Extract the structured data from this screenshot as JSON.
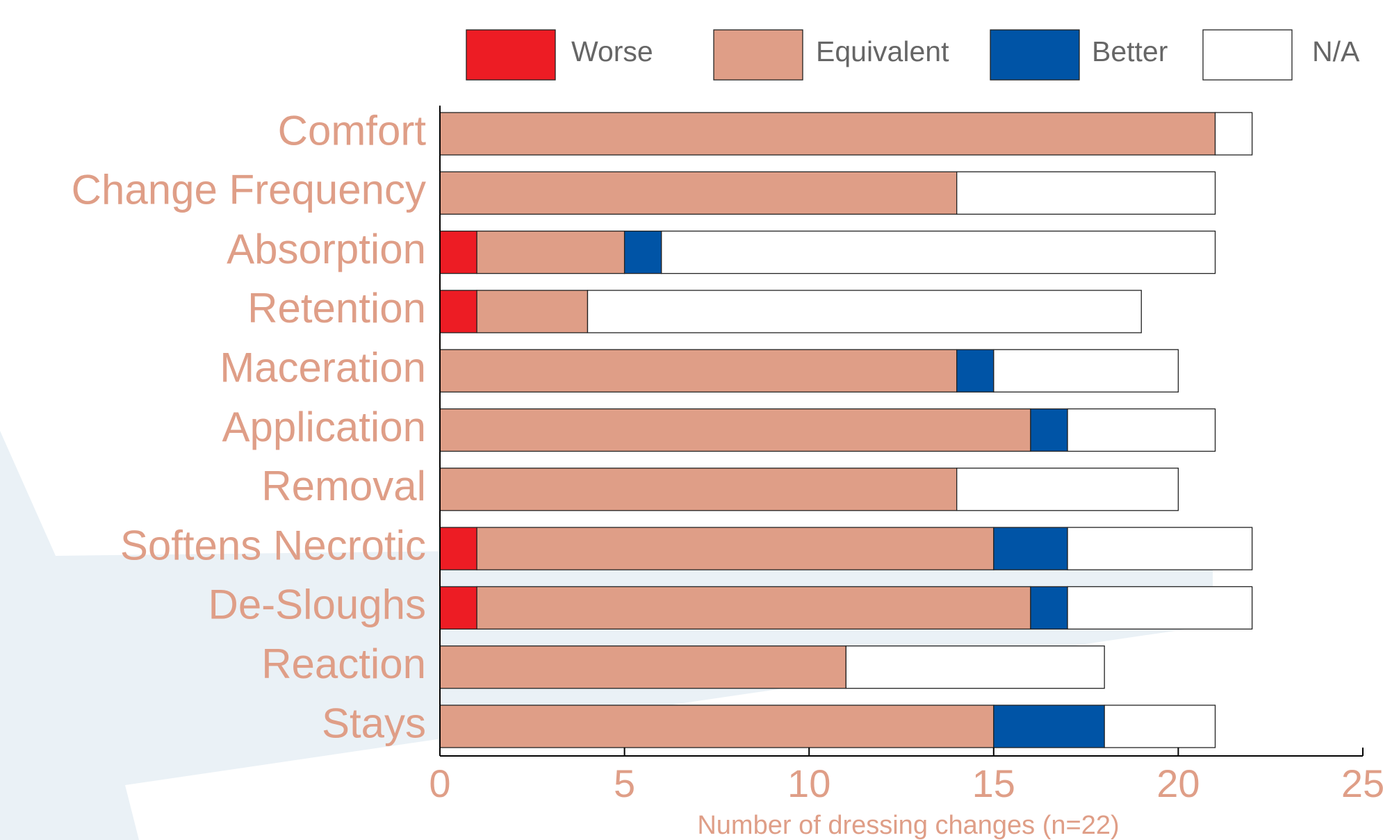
{
  "chart_data": {
    "type": "stacked-barh",
    "categories": [
      "Comfort",
      "Change Frequency",
      "Absorption",
      "Retention",
      "Maceration",
      "Application",
      "Removal",
      "Softens Necrotic",
      "De-Sloughs",
      "Reaction",
      "Stays"
    ],
    "series": [
      {
        "name": "Worse",
        "color": "#ed1c24",
        "values": [
          0,
          0,
          1,
          1,
          0,
          0,
          0,
          1,
          1,
          0,
          0
        ]
      },
      {
        "name": "Equivalent",
        "color": "#df9e87",
        "values": [
          21,
          14,
          4,
          3,
          14,
          16,
          14,
          14,
          15,
          11,
          15
        ]
      },
      {
        "name": "Better",
        "color": "#0054a6",
        "values": [
          0,
          0,
          1,
          0,
          1,
          1,
          0,
          2,
          1,
          0,
          3
        ]
      },
      {
        "name": "N/A",
        "color": "#ffffff",
        "values": [
          1,
          7,
          15,
          15,
          5,
          4,
          6,
          5,
          5,
          7,
          3
        ]
      }
    ],
    "xlabel": "Number of dressing changes (n=22)",
    "xlim": [
      0,
      25
    ],
    "xticks": [
      0,
      5,
      10,
      15,
      20,
      25
    ],
    "legend": "top"
  }
}
